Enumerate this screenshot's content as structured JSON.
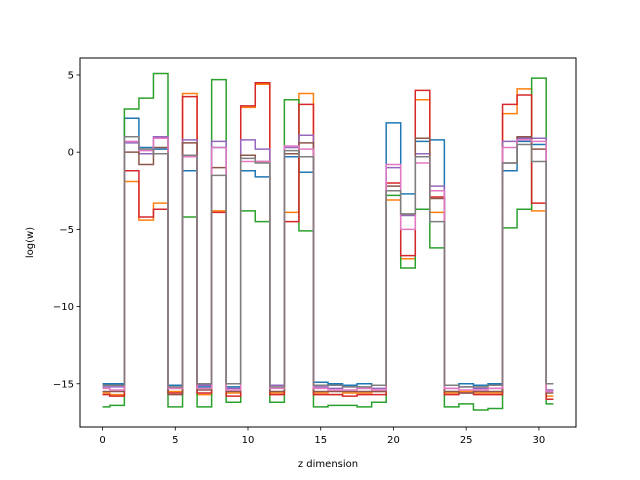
{
  "chart_data": {
    "type": "line",
    "drawstyle": "steps-mid",
    "title": "",
    "xlabel": "z dimension",
    "ylabel": "log(w)",
    "xlim": [
      -1.55,
      32.55
    ],
    "ylim": [
      -17.8,
      6.1
    ],
    "xticks": [
      0,
      5,
      10,
      15,
      20,
      25,
      30
    ],
    "yticks": [
      -15,
      -10,
      -5,
      0,
      5
    ],
    "ytick_labels": [
      "−15",
      "−10",
      "−5",
      "0",
      "5"
    ],
    "grid": false,
    "legend": false,
    "x": [
      0,
      1,
      2,
      3,
      4,
      5,
      6,
      7,
      8,
      9,
      10,
      11,
      12,
      13,
      14,
      15,
      16,
      17,
      18,
      19,
      20,
      21,
      22,
      23,
      24,
      25,
      26,
      27,
      28,
      29,
      30,
      31
    ],
    "series": [
      {
        "color": "#1f77b4",
        "values": [
          -15.0,
          -15.0,
          2.2,
          0.3,
          0.2,
          -15.1,
          -1.2,
          -15.2,
          0.3,
          -15.2,
          -1.2,
          -1.6,
          -15.1,
          -0.3,
          -1.3,
          -14.9,
          -15.0,
          -15.1,
          -15.0,
          -15.1,
          1.9,
          -2.7,
          0.7,
          0.8,
          -15.1,
          -15.0,
          -15.1,
          -15.0,
          -1.2,
          0.7,
          0.5,
          -15.0
        ]
      },
      {
        "color": "#ff7f0e",
        "values": [
          -15.6,
          -15.7,
          -1.9,
          -4.4,
          -3.3,
          -15.5,
          3.8,
          -15.7,
          -3.8,
          -15.6,
          2.9,
          4.4,
          -15.6,
          -3.9,
          3.8,
          -15.6,
          -15.7,
          -15.6,
          -15.6,
          -15.5,
          -3.1,
          -6.9,
          3.4,
          -3.9,
          -15.6,
          -15.5,
          -15.6,
          -15.6,
          2.5,
          4.1,
          -3.8,
          -15.8
        ]
      },
      {
        "color": "#2ca02c",
        "values": [
          -16.5,
          -16.4,
          2.8,
          3.5,
          5.1,
          -16.5,
          -4.2,
          -16.5,
          4.7,
          -16.2,
          -3.8,
          -4.5,
          -16.2,
          3.4,
          -5.1,
          -16.5,
          -16.4,
          -16.4,
          -16.5,
          -16.2,
          -2.8,
          -7.5,
          -3.7,
          -6.2,
          -16.5,
          -16.3,
          -16.7,
          -16.6,
          -4.9,
          -3.7,
          4.8,
          -16.3
        ]
      },
      {
        "color": "#d62728",
        "values": [
          -15.7,
          -15.8,
          -1.2,
          -4.2,
          -3.7,
          -15.6,
          3.6,
          -15.6,
          -3.9,
          -15.8,
          3.0,
          4.5,
          -15.7,
          -4.5,
          3.1,
          -15.7,
          -15.7,
          -15.8,
          -15.7,
          -15.7,
          -2.0,
          -6.7,
          4.0,
          -2.9,
          -15.7,
          -15.6,
          -15.7,
          -15.7,
          3.1,
          3.7,
          -3.3,
          -16.0
        ]
      },
      {
        "color": "#9467bd",
        "values": [
          -15.2,
          -15.2,
          0.6,
          -0.1,
          1.0,
          -15.3,
          0.8,
          -15.1,
          0.7,
          -15.3,
          0.8,
          0.2,
          -15.1,
          0.3,
          1.1,
          -15.2,
          -15.3,
          -15.2,
          -15.3,
          -15.3,
          -1.0,
          -4.1,
          -0.1,
          -2.2,
          -15.3,
          -15.2,
          -15.3,
          -15.3,
          0.7,
          0.9,
          0.9,
          -15.4
        ]
      },
      {
        "color": "#8c564b",
        "values": [
          -15.5,
          -15.5,
          0.0,
          -0.8,
          0.3,
          -15.7,
          0.6,
          -15.4,
          -1.0,
          -15.5,
          -0.2,
          -0.6,
          -15.5,
          -0.1,
          0.6,
          -15.5,
          -15.5,
          -15.5,
          -15.5,
          -15.5,
          -2.2,
          -4.0,
          0.9,
          -3.0,
          -15.5,
          -15.6,
          -15.5,
          -15.5,
          -0.7,
          1.0,
          0.2,
          -15.6
        ]
      },
      {
        "color": "#e377c2",
        "values": [
          -15.3,
          -15.4,
          0.7,
          0.1,
          0.9,
          -15.3,
          -0.3,
          -15.3,
          0.3,
          -15.4,
          -0.6,
          -0.6,
          -15.3,
          0.4,
          0.2,
          -15.3,
          -15.4,
          -15.4,
          -15.3,
          -15.4,
          -0.8,
          -5.0,
          -0.7,
          -2.5,
          -15.3,
          -15.4,
          -15.4,
          -15.3,
          0.3,
          0.8,
          0.7,
          -15.5
        ]
      },
      {
        "color": "#7f7f7f",
        "values": [
          -15.1,
          -15.1,
          1.0,
          0.2,
          -0.1,
          -15.2,
          -0.2,
          -15.0,
          -1.5,
          -15.0,
          -0.4,
          -0.7,
          -15.2,
          0.1,
          -0.3,
          -15.1,
          -15.1,
          -15.2,
          -15.2,
          -15.1,
          -2.5,
          -4.0,
          -0.3,
          -4.5,
          -15.1,
          -15.2,
          -15.2,
          -15.1,
          -0.7,
          0.5,
          -0.6,
          -15.0
        ]
      }
    ]
  }
}
